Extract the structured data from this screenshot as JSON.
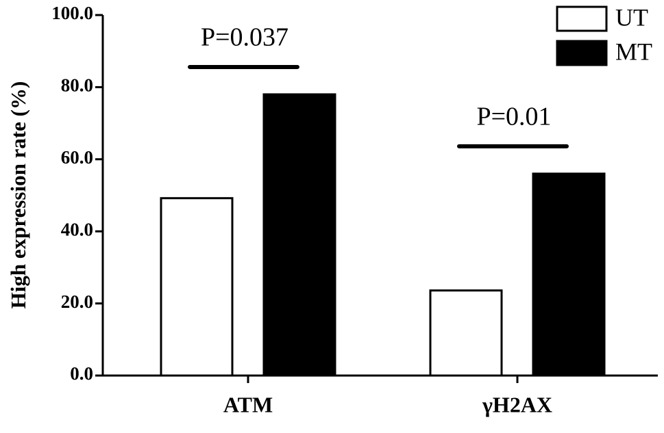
{
  "chart_data": {
    "type": "bar",
    "y_label": "High expression rate (%)",
    "categories": [
      "ATM",
      "γH2AX"
    ],
    "series": [
      {
        "name": "UT",
        "color": "#ffffff",
        "values": [
          49.2,
          23.6
        ]
      },
      {
        "name": "MT",
        "color": "#000000",
        "values": [
          78,
          56
        ]
      }
    ],
    "annotations": [
      "P=0.037",
      "P=0.01"
    ],
    "ylim": [
      0,
      100
    ],
    "yticks": [
      {
        "value": 0,
        "label": "0.0"
      },
      {
        "value": 20,
        "label": "20.0"
      },
      {
        "value": 40,
        "label": "40.0"
      },
      {
        "value": 60,
        "label": "60.0"
      },
      {
        "value": 80,
        "label": "80.0"
      },
      {
        "value": 100,
        "label": "100.0"
      }
    ],
    "legend": "top-right"
  }
}
